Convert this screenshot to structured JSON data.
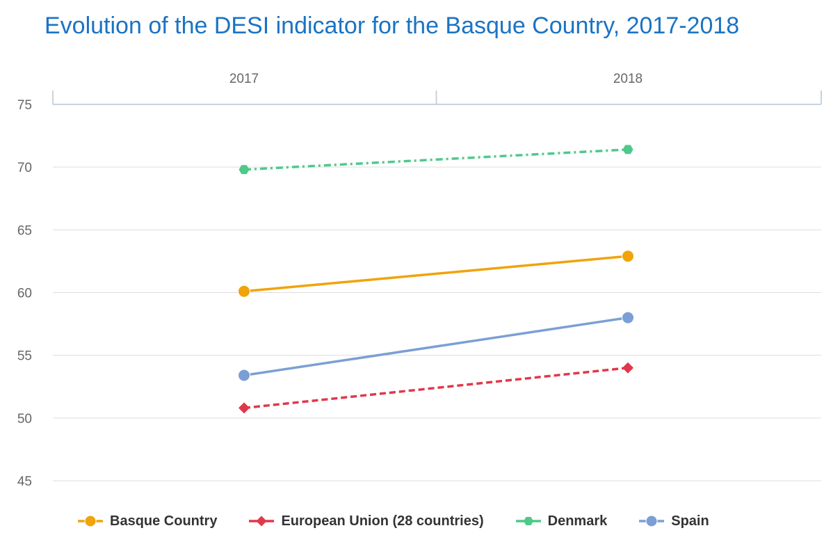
{
  "chart_data": {
    "type": "line",
    "title": "Evolution of the DESI indicator for the Basque Country, 2017-2018",
    "xlabel": "",
    "ylabel": "",
    "categories": [
      "2017",
      "2018"
    ],
    "ylim": [
      45,
      75
    ],
    "yticks": [
      45,
      50,
      55,
      60,
      65,
      70,
      75
    ],
    "x_axis_position": "top",
    "grid": true,
    "legend_position": "bottom",
    "series": [
      {
        "name": "Basque Country",
        "values": [
          60.1,
          62.9
        ],
        "color": "#f0a30a",
        "marker": "circle",
        "dash": "solid"
      },
      {
        "name": "European Union (28 countries)",
        "values": [
          50.8,
          54.0
        ],
        "color": "#e0384a",
        "marker": "diamond",
        "dash": "dashed"
      },
      {
        "name": "Denmark",
        "values": [
          69.8,
          71.4
        ],
        "color": "#4ec98a",
        "marker": "hexagon",
        "dash": "dashdot"
      },
      {
        "name": "Spain",
        "values": [
          53.4,
          58.0
        ],
        "color": "#7b9fd4",
        "marker": "circle",
        "dash": "solid"
      }
    ]
  }
}
